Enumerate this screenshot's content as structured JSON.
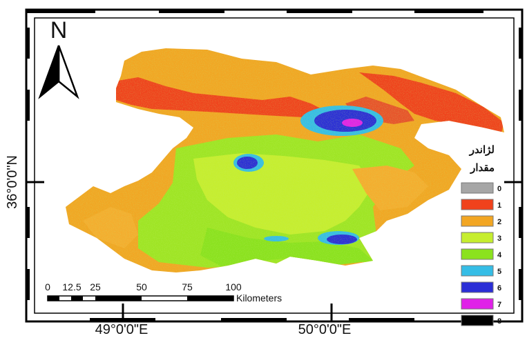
{
  "map": {
    "north_arrow_label": "N",
    "latitude_label": "36°0'0\"N",
    "longitude_labels": [
      "49°0'0\"E",
      "50°0'0\"E"
    ],
    "scale_bar": {
      "ticks": [
        "0",
        "12.5",
        "25",
        "50",
        "75",
        "100"
      ],
      "unit": "Kilometers"
    },
    "legend": {
      "title_line1": "لژاندر",
      "title_line2": "مقدار",
      "items": [
        {
          "label": "0",
          "color": "#a6a6a6"
        },
        {
          "label": "1",
          "color": "#f0421c"
        },
        {
          "label": "2",
          "color": "#f2a623"
        },
        {
          "label": "3",
          "color": "#c6ee2f"
        },
        {
          "label": "4",
          "color": "#8be21e"
        },
        {
          "label": "5",
          "color": "#35bde6"
        },
        {
          "label": "6",
          "color": "#2a2ed6"
        },
        {
          "label": "7",
          "color": "#e021e8"
        },
        {
          "label": "8",
          "color": "#000000"
        }
      ]
    }
  }
}
